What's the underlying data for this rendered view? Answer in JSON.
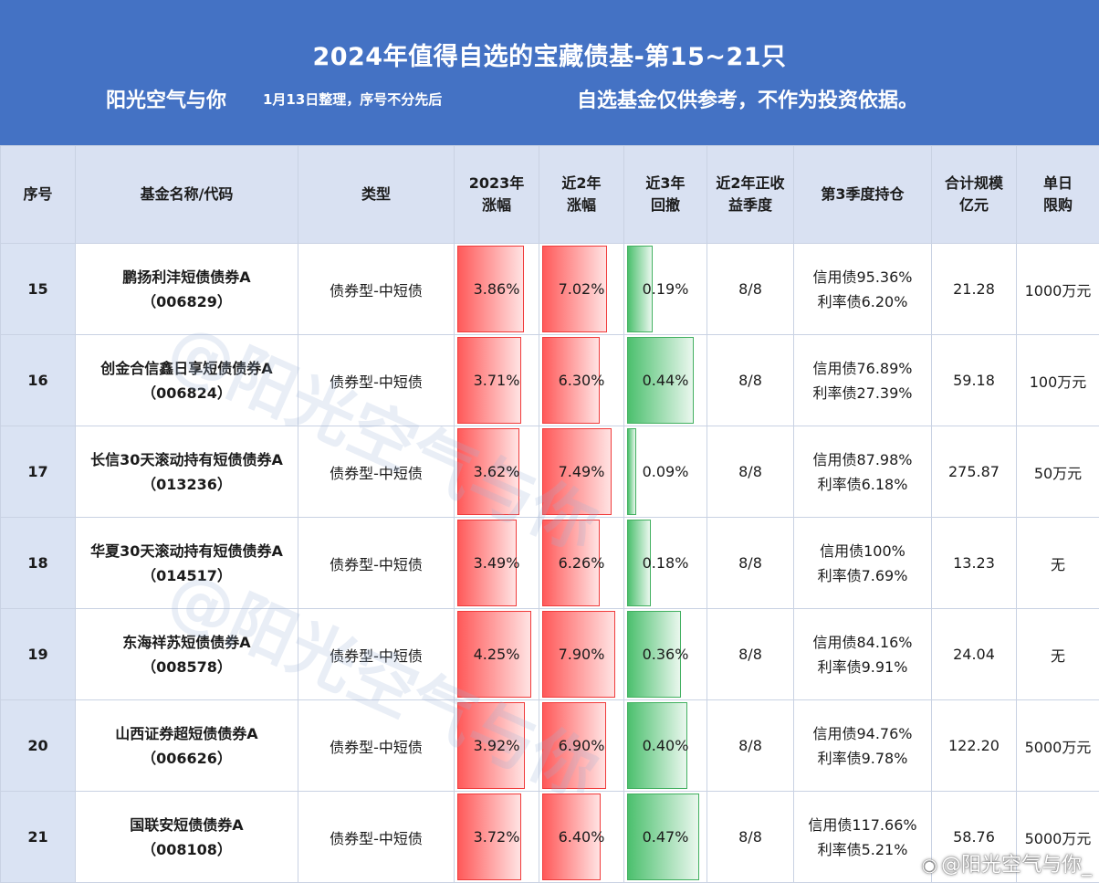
{
  "header": {
    "title": "2024年值得自选的宝藏债基-第15~21只",
    "author": "阳光空气与你",
    "note": "1月13日整理，序号不分先后",
    "disclaimer": "自选基金仅供参考，不作为投资依据。"
  },
  "columns": [
    {
      "line1": "序号",
      "line2": ""
    },
    {
      "line1": "基金名称/代码",
      "line2": ""
    },
    {
      "line1": "类型",
      "line2": ""
    },
    {
      "line1": "2023年",
      "line2": "涨幅"
    },
    {
      "line1": "近2年",
      "line2": "涨幅"
    },
    {
      "line1": "近3年",
      "line2": "回撤"
    },
    {
      "line1": "近2年正收",
      "line2": "益季度"
    },
    {
      "line1": "第3季度持仓",
      "line2": ""
    },
    {
      "line1": "合计规模",
      "line2": "亿元"
    },
    {
      "line1": "单日",
      "line2": "限购"
    }
  ],
  "rows": [
    {
      "seq": "15",
      "name": "鹏扬利沣短债债券A",
      "code": "（006829）",
      "type": "债券型-中短债",
      "r2023": "3.86%",
      "r2y": "7.02%",
      "dd3y": "0.19%",
      "r2023_pct": 3.86,
      "r2y_pct": 7.02,
      "dd3y_pct": 0.19,
      "seasons": "8/8",
      "hold1": "信用债95.36%",
      "hold2": "利率债6.20%",
      "scale": "21.28",
      "limit": "1000万元"
    },
    {
      "seq": "16",
      "name": "创金合信鑫日享短债债券A",
      "code": "（006824）",
      "type": "债券型-中短债",
      "r2023": "3.71%",
      "r2y": "6.30%",
      "dd3y": "0.44%",
      "r2023_pct": 3.71,
      "r2y_pct": 6.3,
      "dd3y_pct": 0.44,
      "seasons": "8/8",
      "hold1": "信用债76.89%",
      "hold2": "利率债27.39%",
      "scale": "59.18",
      "limit": "100万元"
    },
    {
      "seq": "17",
      "name": "长信30天滚动持有短债债券A",
      "code": "（013236）",
      "type": "债券型-中短债",
      "r2023": "3.62%",
      "r2y": "7.49%",
      "dd3y": "0.09%",
      "r2023_pct": 3.62,
      "r2y_pct": 7.49,
      "dd3y_pct": 0.09,
      "seasons": "8/8",
      "hold1": "信用债87.98%",
      "hold2": "利率债6.18%",
      "scale": "275.87",
      "limit": "50万元"
    },
    {
      "seq": "18",
      "name": "华夏30天滚动持有短债债券A",
      "code": "（014517）",
      "type": "债券型-中短债",
      "r2023": "3.49%",
      "r2y": "6.26%",
      "dd3y": "0.18%",
      "r2023_pct": 3.49,
      "r2y_pct": 6.26,
      "dd3y_pct": 0.18,
      "seasons": "8/8",
      "hold1": "信用债100%",
      "hold2": "利率债7.69%",
      "scale": "13.23",
      "limit": "无"
    },
    {
      "seq": "19",
      "name": "东海祥苏短债债券A",
      "code": "（008578）",
      "type": "债券型-中短债",
      "r2023": "4.25%",
      "r2y": "7.90%",
      "dd3y": "0.36%",
      "r2023_pct": 4.25,
      "r2y_pct": 7.9,
      "dd3y_pct": 0.36,
      "seasons": "8/8",
      "hold1": "信用债84.16%",
      "hold2": "利率债9.91%",
      "scale": "24.04",
      "limit": "无"
    },
    {
      "seq": "20",
      "name": "山西证券超短债债券A",
      "code": "（006626）",
      "type": "债券型-中短债",
      "r2023": "3.92%",
      "r2y": "6.90%",
      "dd3y": "0.40%",
      "r2023_pct": 3.92,
      "r2y_pct": 6.9,
      "dd3y_pct": 0.4,
      "seasons": "8/8",
      "hold1": "信用债94.76%",
      "hold2": "利率债9.78%",
      "scale": "122.20",
      "limit": "5000万元"
    },
    {
      "seq": "21",
      "name": "国联安短债债券A",
      "code": "（008108）",
      "type": "债券型-中短债",
      "r2023": "3.72%",
      "r2y": "6.40%",
      "dd3y": "0.47%",
      "r2023_pct": 3.72,
      "r2y_pct": 6.4,
      "dd3y_pct": 0.47,
      "seasons": "8/8",
      "hold1": "信用债117.66%",
      "hold2": "利率债5.21%",
      "scale": "58.76",
      "limit": "5000万元"
    }
  ],
  "watermark": "@阳光空气与你",
  "weibo": {
    "icon": "weibo-logo-icon",
    "text": "@阳光空气与你_"
  },
  "colors": {
    "header_bg": "#4472c4",
    "th_bg": "#d9e1f2",
    "red_bar": "#ff5a5a",
    "green_bar": "#4cc06e"
  }
}
